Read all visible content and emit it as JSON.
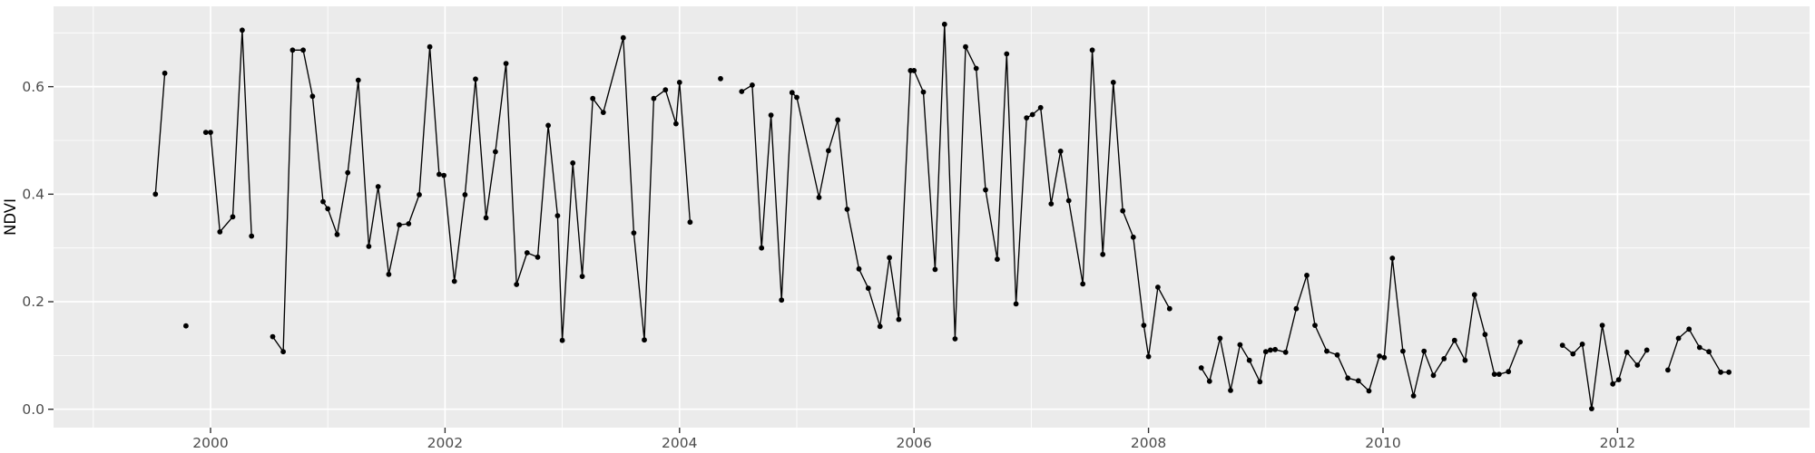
{
  "chart_data": {
    "type": "line",
    "title": "",
    "xlabel": "",
    "ylabel": "NDVI",
    "legend": "none",
    "grid": true,
    "panel_background": "#EBEBEB",
    "grid_major_color": "#FFFFFF",
    "grid_minor_color": "#FFFFFF",
    "tick_color": "#333333",
    "tick_label_color": "#4D4D4D",
    "axis_title_color": "#000000",
    "series_color": "#000000",
    "x_range": [
      1998.661,
      2013.638
    ],
    "y_range": [
      -0.0342,
      0.7494
    ],
    "x_ticks": [
      2000,
      2002,
      2004,
      2006,
      2008,
      2010,
      2012
    ],
    "x_tick_labels": [
      "2000",
      "2002",
      "2004",
      "2006",
      "2008",
      "2010",
      "2012"
    ],
    "x_minor_ticks": [
      1999,
      2001,
      2003,
      2005,
      2007,
      2009,
      2011,
      2013
    ],
    "y_ticks": [
      0.0,
      0.2,
      0.4,
      0.6
    ],
    "y_tick_labels": [
      "0.0",
      "0.2",
      "0.4",
      "0.6"
    ],
    "y_minor_ticks": [
      0.1,
      0.3,
      0.5,
      0.7
    ],
    "series": [
      {
        "name": "NDVI",
        "segments": [
          [
            [
              1999.53,
              0.4
            ],
            [
              1999.61,
              0.625
            ]
          ],
          [
            [
              1999.79,
              0.155
            ]
          ],
          [
            [
              1999.96,
              0.515
            ],
            [
              2000.0,
              0.515
            ],
            [
              2000.08,
              0.33
            ],
            [
              2000.19,
              0.358
            ],
            [
              2000.27,
              0.705
            ],
            [
              2000.35,
              0.322
            ]
          ],
          [
            [
              2000.53,
              0.135
            ],
            [
              2000.62,
              0.107
            ],
            [
              2000.7,
              0.668
            ],
            [
              2000.79,
              0.668
            ],
            [
              2000.87,
              0.582
            ],
            [
              2000.96,
              0.386
            ],
            [
              2001.0,
              0.373
            ],
            [
              2001.08,
              0.325
            ],
            [
              2001.17,
              0.44
            ],
            [
              2001.26,
              0.612
            ],
            [
              2001.35,
              0.303
            ],
            [
              2001.43,
              0.414
            ],
            [
              2001.52,
              0.251
            ],
            [
              2001.61,
              0.343
            ],
            [
              2001.69,
              0.345
            ],
            [
              2001.78,
              0.399
            ],
            [
              2001.87,
              0.674
            ],
            [
              2001.95,
              0.437
            ],
            [
              2001.99,
              0.435
            ],
            [
              2002.08,
              0.238
            ],
            [
              2002.17,
              0.399
            ],
            [
              2002.26,
              0.614
            ],
            [
              2002.35,
              0.356
            ],
            [
              2002.43,
              0.479
            ],
            [
              2002.52,
              0.643
            ],
            [
              2002.61,
              0.232
            ],
            [
              2002.7,
              0.291
            ],
            [
              2002.79,
              0.283
            ],
            [
              2002.88,
              0.528
            ],
            [
              2002.96,
              0.36
            ],
            [
              2003.0,
              0.128
            ],
            [
              2003.09,
              0.458
            ],
            [
              2003.17,
              0.247
            ],
            [
              2003.26,
              0.578
            ],
            [
              2003.35,
              0.552
            ],
            [
              2003.52,
              0.691
            ],
            [
              2003.61,
              0.328
            ],
            [
              2003.7,
              0.129
            ],
            [
              2003.78,
              0.578
            ],
            [
              2003.88,
              0.594
            ],
            [
              2003.97,
              0.531
            ],
            [
              2004.0,
              0.608
            ],
            [
              2004.09,
              0.348
            ]
          ],
          [
            [
              2004.35,
              0.615
            ]
          ],
          [
            [
              2004.53,
              0.591
            ],
            [
              2004.62,
              0.603
            ],
            [
              2004.7,
              0.3
            ],
            [
              2004.78,
              0.547
            ],
            [
              2004.87,
              0.203
            ],
            [
              2004.96,
              0.589
            ],
            [
              2005.0,
              0.58
            ],
            [
              2005.19,
              0.394
            ],
            [
              2005.27,
              0.481
            ],
            [
              2005.35,
              0.538
            ],
            [
              2005.43,
              0.372
            ],
            [
              2005.53,
              0.261
            ],
            [
              2005.61,
              0.225
            ],
            [
              2005.71,
              0.154
            ],
            [
              2005.79,
              0.282
            ],
            [
              2005.87,
              0.167
            ],
            [
              2005.97,
              0.63
            ],
            [
              2006.0,
              0.63
            ],
            [
              2006.08,
              0.59
            ],
            [
              2006.18,
              0.26
            ],
            [
              2006.26,
              0.716
            ],
            [
              2006.35,
              0.131
            ],
            [
              2006.44,
              0.674
            ],
            [
              2006.53,
              0.634
            ],
            [
              2006.61,
              0.408
            ],
            [
              2006.71,
              0.279
            ],
            [
              2006.79,
              0.661
            ],
            [
              2006.87,
              0.196
            ],
            [
              2006.96,
              0.542
            ],
            [
              2007.01,
              0.548
            ],
            [
              2007.08,
              0.561
            ],
            [
              2007.17,
              0.382
            ],
            [
              2007.25,
              0.48
            ],
            [
              2007.32,
              0.388
            ],
            [
              2007.44,
              0.233
            ],
            [
              2007.52,
              0.668
            ],
            [
              2007.61,
              0.288
            ],
            [
              2007.7,
              0.608
            ],
            [
              2007.78,
              0.369
            ],
            [
              2007.87,
              0.32
            ],
            [
              2007.96,
              0.156
            ],
            [
              2008.0,
              0.098
            ],
            [
              2008.08,
              0.227
            ],
            [
              2008.18,
              0.187
            ]
          ],
          [
            [
              2008.45,
              0.077
            ],
            [
              2008.52,
              0.052
            ],
            [
              2008.61,
              0.132
            ],
            [
              2008.7,
              0.035
            ],
            [
              2008.78,
              0.12
            ],
            [
              2008.86,
              0.091
            ],
            [
              2008.95,
              0.051
            ],
            [
              2009.0,
              0.107
            ],
            [
              2009.04,
              0.11
            ],
            [
              2009.08,
              0.111
            ],
            [
              2009.17,
              0.106
            ],
            [
              2009.26,
              0.187
            ],
            [
              2009.35,
              0.249
            ],
            [
              2009.42,
              0.156
            ],
            [
              2009.52,
              0.108
            ],
            [
              2009.61,
              0.101
            ],
            [
              2009.7,
              0.058
            ],
            [
              2009.79,
              0.053
            ],
            [
              2009.88,
              0.034
            ],
            [
              2009.97,
              0.099
            ],
            [
              2010.01,
              0.096
            ],
            [
              2010.08,
              0.281
            ],
            [
              2010.17,
              0.108
            ],
            [
              2010.26,
              0.025
            ],
            [
              2010.35,
              0.108
            ],
            [
              2010.43,
              0.063
            ],
            [
              2010.52,
              0.094
            ],
            [
              2010.61,
              0.128
            ],
            [
              2010.7,
              0.091
            ],
            [
              2010.78,
              0.213
            ],
            [
              2010.87,
              0.139
            ],
            [
              2010.95,
              0.065
            ],
            [
              2010.99,
              0.065
            ],
            [
              2011.07,
              0.07
            ],
            [
              2011.17,
              0.125
            ]
          ],
          [
            [
              2011.53,
              0.119
            ],
            [
              2011.62,
              0.103
            ],
            [
              2011.7,
              0.121
            ],
            [
              2011.78,
              0.001
            ],
            [
              2011.87,
              0.156
            ],
            [
              2011.96,
              0.047
            ],
            [
              2012.01,
              0.055
            ],
            [
              2012.08,
              0.106
            ],
            [
              2012.17,
              0.082
            ],
            [
              2012.25,
              0.11
            ]
          ],
          [
            [
              2012.43,
              0.073
            ],
            [
              2012.52,
              0.132
            ],
            [
              2012.61,
              0.149
            ],
            [
              2012.7,
              0.115
            ],
            [
              2012.78,
              0.107
            ],
            [
              2012.88,
              0.069
            ],
            [
              2012.95,
              0.069
            ]
          ]
        ]
      }
    ]
  }
}
